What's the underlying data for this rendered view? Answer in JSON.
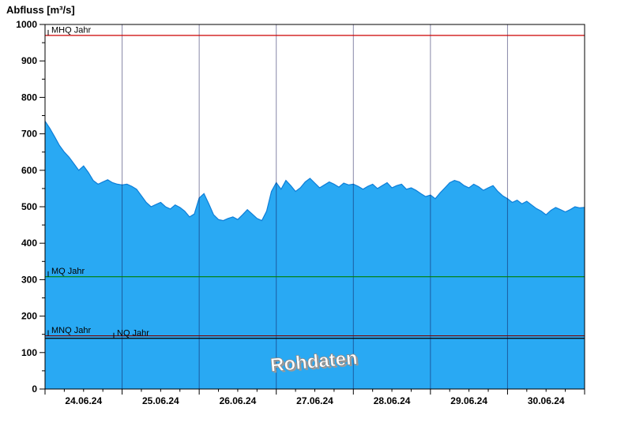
{
  "title": "Abfluss [m³/s]",
  "watermark": "Rohdaten",
  "chart_data": {
    "type": "area",
    "title": "Abfluss [m³/s]",
    "ylabel": "Abfluss [m³/s]",
    "xlabel": "",
    "ylim": [
      0,
      1000
    ],
    "y_ticks": [
      0,
      100,
      200,
      300,
      400,
      500,
      600,
      700,
      800,
      900,
      1000
    ],
    "x_tick_labels": [
      "24.06.24",
      "25.06.24",
      "26.06.24",
      "27.06.24",
      "28.06.24",
      "29.06.24",
      "30.06.24"
    ],
    "points_per_day": 16,
    "series": [
      {
        "name": "Rohdaten",
        "values": [
          735,
          715,
          692,
          668,
          650,
          636,
          618,
          600,
          612,
          594,
          572,
          562,
          568,
          574,
          566,
          562,
          560,
          562,
          556,
          548,
          530,
          512,
          500,
          506,
          512,
          500,
          494,
          505,
          498,
          488,
          472,
          480,
          524,
          536,
          508,
          478,
          465,
          462,
          468,
          472,
          465,
          478,
          492,
          480,
          468,
          462,
          488,
          542,
          566,
          548,
          572,
          558,
          542,
          552,
          568,
          578,
          565,
          552,
          560,
          568,
          562,
          554,
          565,
          560,
          562,
          556,
          548,
          556,
          562,
          550,
          558,
          566,
          552,
          558,
          562,
          548,
          552,
          545,
          536,
          528,
          532,
          522,
          538,
          552,
          566,
          572,
          568,
          558,
          552,
          562,
          555,
          545,
          552,
          558,
          542,
          530,
          522,
          512,
          518,
          508,
          515,
          505,
          495,
          488,
          478,
          490,
          498,
          492,
          486,
          492,
          500,
          497,
          498
        ]
      }
    ],
    "reference_lines": [
      {
        "label": "MHQ Jahr",
        "value": 970,
        "color": "#cc0000",
        "label_x": 65
      },
      {
        "label": "MQ Jahr",
        "value": 308,
        "color": "#008000",
        "label_x": 65
      },
      {
        "label": "MNQ Jahr",
        "value": 146,
        "color": "#7a0000",
        "label_x": 65
      },
      {
        "label": "NQ Jahr",
        "value": 139,
        "color": "#000000",
        "label_x": 148
      }
    ],
    "colors": {
      "area_fill": "#29a9f3",
      "area_stroke": "#0d7ed8",
      "grid": "rgba(15,15,80,0.5)",
      "frame": "#000000",
      "watermark_fill": "#ffffff",
      "watermark_outline": "#8a8a8a"
    },
    "legend_position": "none",
    "grid": "vertical-day-lines"
  }
}
